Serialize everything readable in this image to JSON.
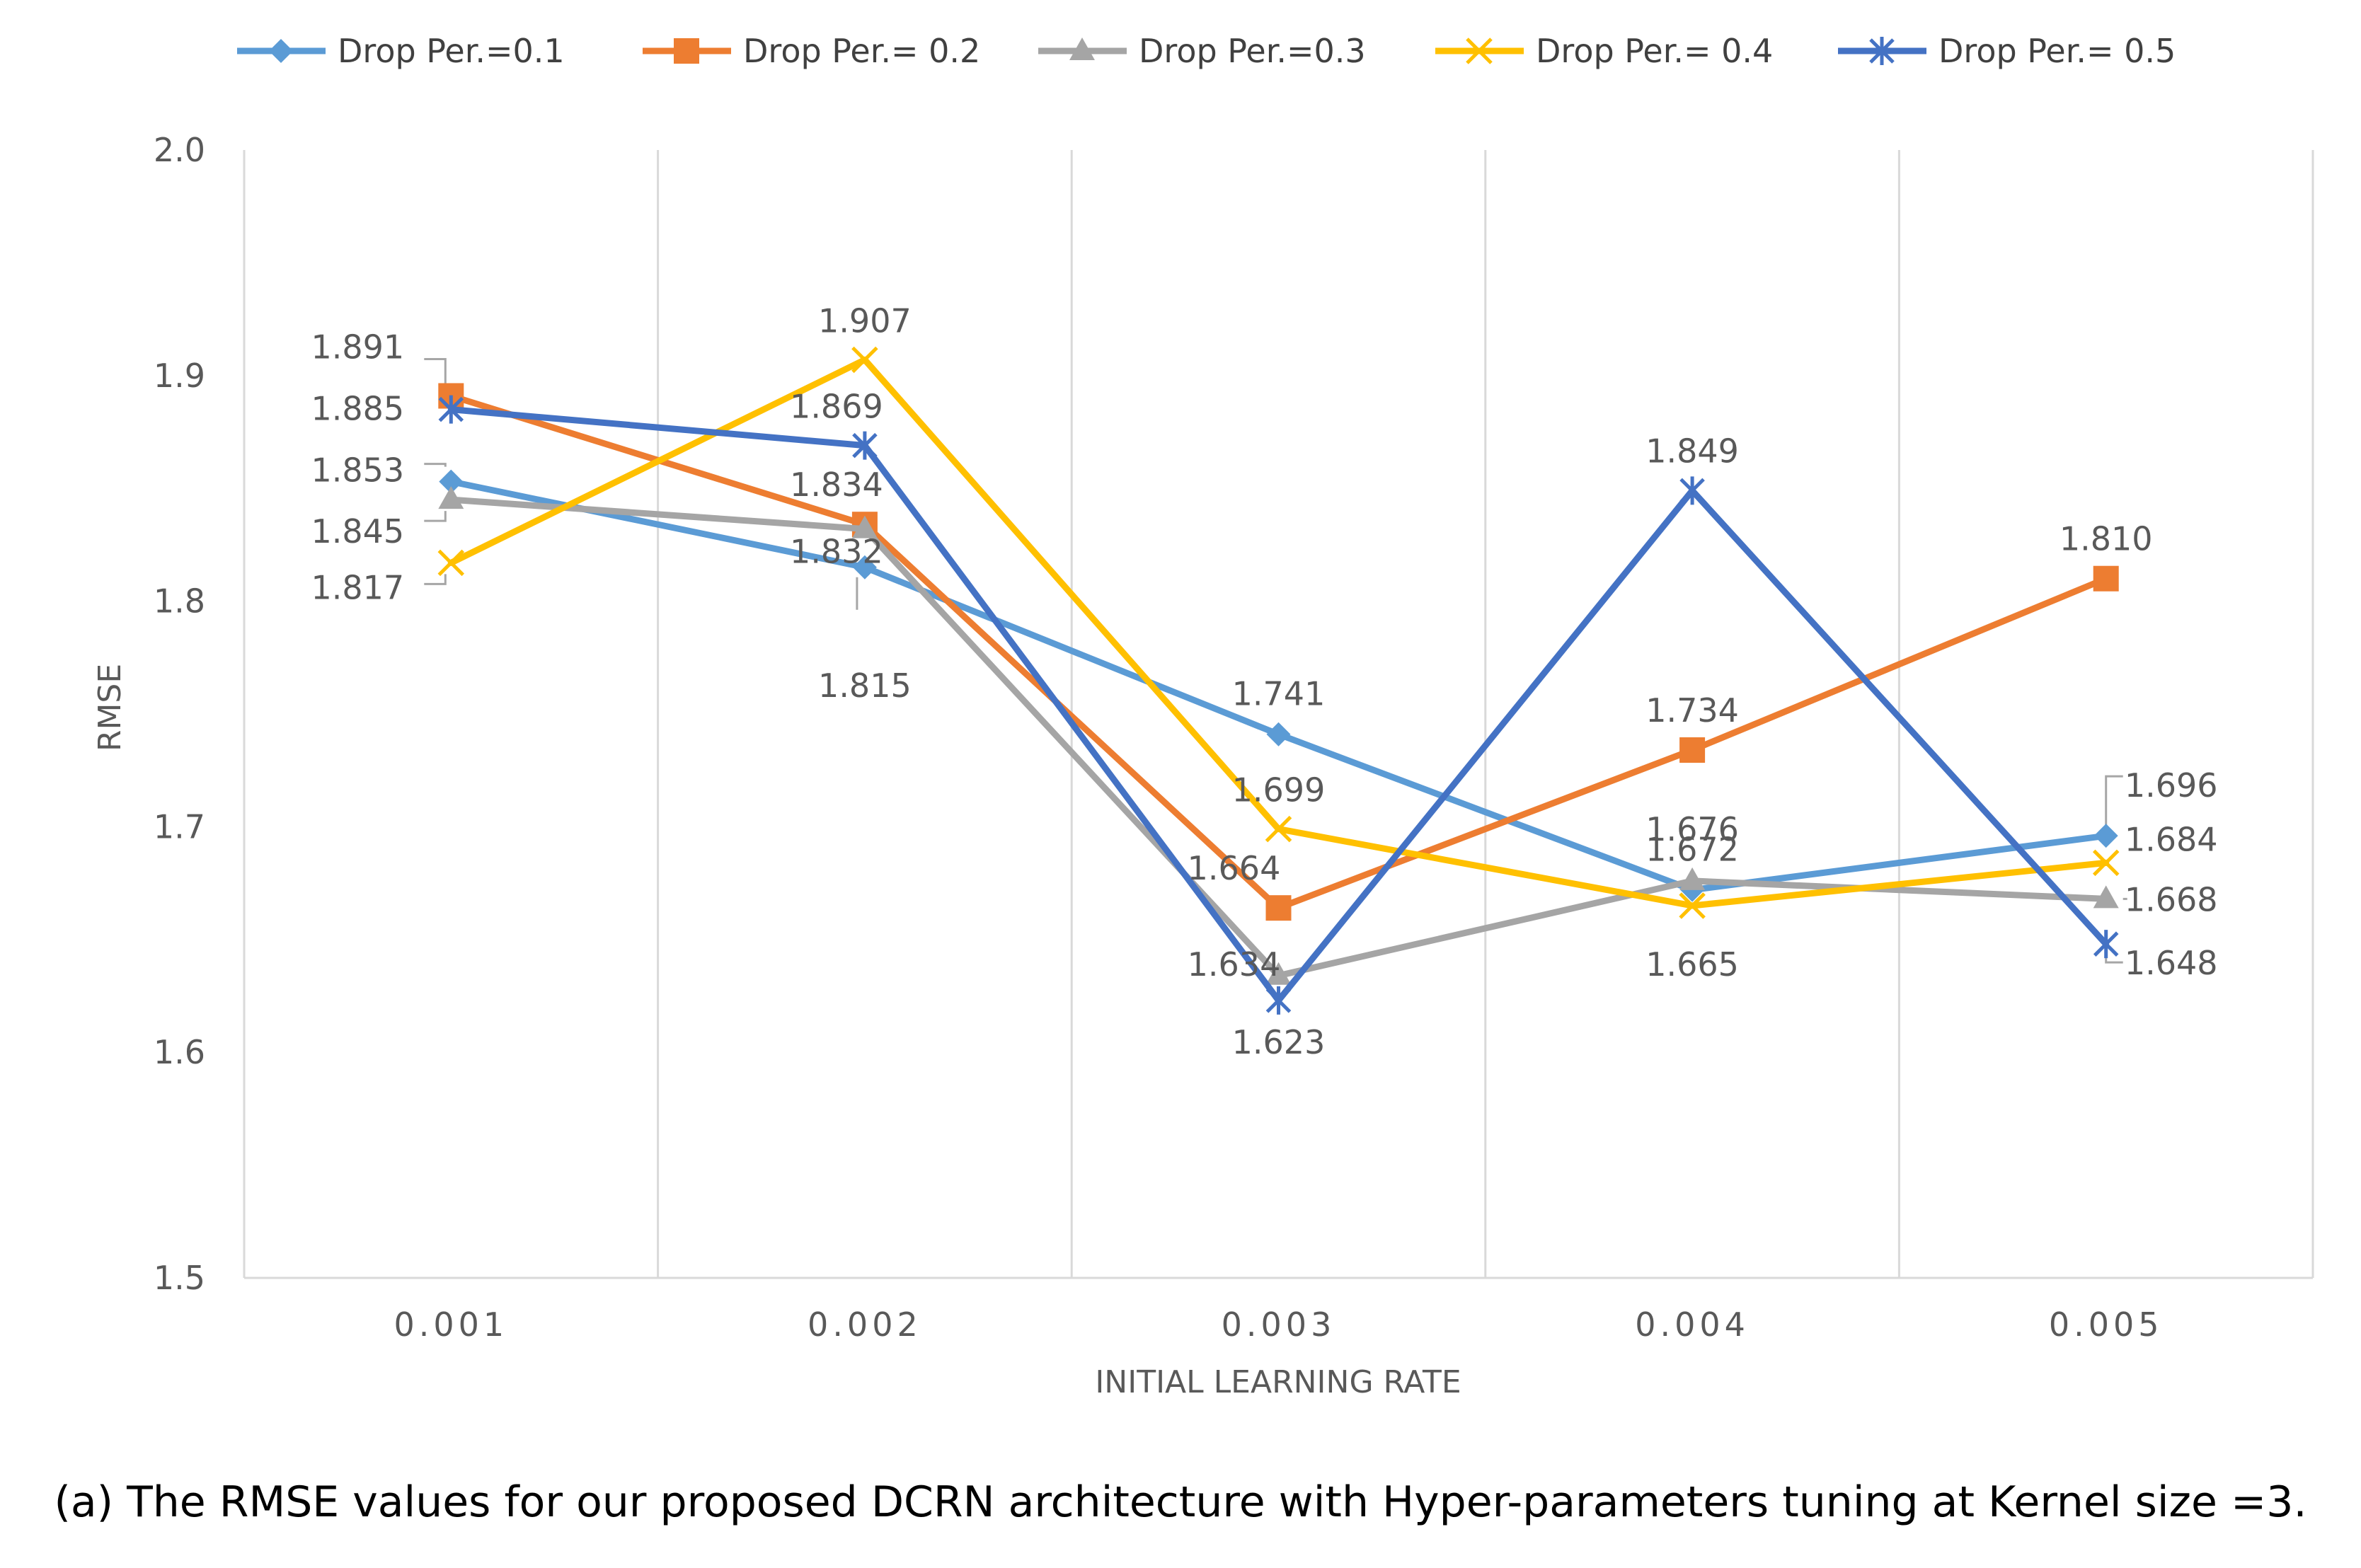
{
  "caption": "(a)  The RMSE values for our proposed DCRN architecture with Hyper-parameters tuning at Kernel size =3.",
  "chart_data": {
    "type": "line",
    "title": "",
    "xlabel": "INITIAL LEARNING RATE",
    "ylabel": "RMSE",
    "categories": [
      "0.001",
      "0.002",
      "0.003",
      "0.004",
      "0.005"
    ],
    "ylim": [
      1.5,
      2.0
    ],
    "yticks": [
      "1.5",
      "1.6",
      "1.7",
      "1.8",
      "1.9",
      "2.0"
    ],
    "grid": "vertical",
    "legend": "top",
    "series": [
      {
        "name": "Drop Per.=0.1",
        "color": "#5B9BD5",
        "marker": "diamond",
        "values": [
          1.853,
          1.815,
          1.741,
          1.672,
          1.696
        ],
        "labels": [
          "1.853",
          "1.815",
          "1.741",
          "1.672",
          "1.696"
        ]
      },
      {
        "name": "Drop Per.= 0.2",
        "color": "#ED7D31",
        "marker": "square",
        "values": [
          1.891,
          1.834,
          1.664,
          1.734,
          1.81
        ],
        "labels": [
          "1.891",
          "1.834",
          "1.664",
          "1.734",
          "1.810"
        ]
      },
      {
        "name": "Drop Per.=0.3",
        "color": "#A5A5A5",
        "marker": "triangle",
        "values": [
          1.845,
          1.832,
          1.634,
          1.676,
          1.668
        ],
        "labels": [
          "1.845",
          "1.832",
          "1.634",
          "1.676",
          "1.668"
        ]
      },
      {
        "name": "Drop Per.= 0.4",
        "color": "#FFC000",
        "marker": "x",
        "values": [
          1.817,
          1.907,
          1.699,
          1.665,
          1.684
        ],
        "labels": [
          "1.817",
          "1.907",
          "1.699",
          "1.665",
          "1.684"
        ]
      },
      {
        "name": "Drop Per.= 0.5",
        "color": "#4472C4",
        "marker": "star",
        "values": [
          1.885,
          1.869,
          1.623,
          1.849,
          1.648
        ],
        "labels": [
          "1.885",
          "1.869",
          "1.623",
          "1.849",
          "1.648"
        ]
      }
    ]
  }
}
